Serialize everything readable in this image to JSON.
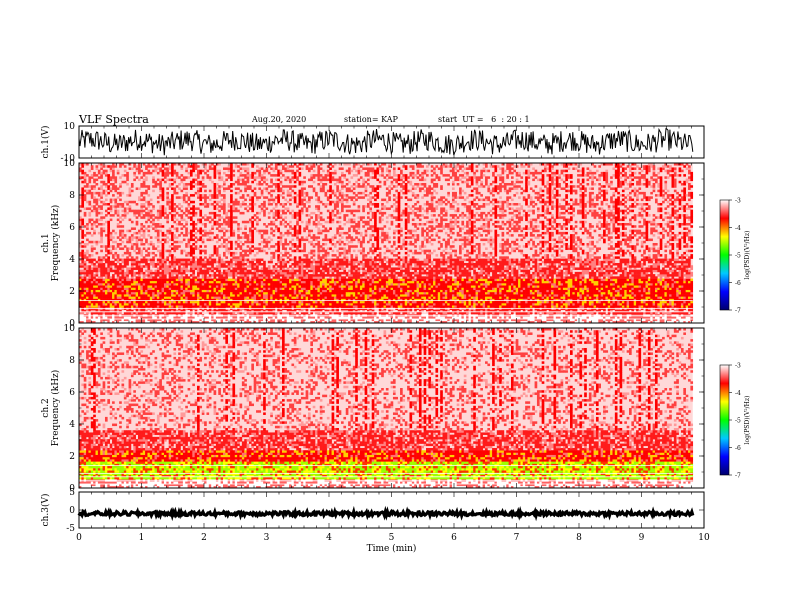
{
  "header": {
    "title": "VLF Spectra",
    "date": "Aug.20, 2020",
    "station": "station= KAP",
    "start": "start  UT =   6  : 20 : 1"
  },
  "chart_data": [
    {
      "type": "line",
      "panel": "ch1-waveform",
      "ylabel": "ch.1(V)",
      "xlim": [
        0,
        10
      ],
      "ylim": [
        -10,
        10
      ],
      "yticks": [
        "10",
        "-10"
      ],
      "trace_color": "#000000",
      "note": "dense noisy waveform spanning roughly -7 to 9 V, shown from t=0 to about 9.8 min"
    },
    {
      "type": "heatmap",
      "panel": "ch1-spectrogram",
      "ylabel": "ch.1\nFrequency  (kHz)",
      "xlim": [
        0,
        10
      ],
      "ylim": [
        0,
        10
      ],
      "yticks": [
        "0",
        "2",
        "4",
        "6",
        "8",
        "10"
      ],
      "colorbar": {
        "label": "log(PSD)(V²/Hz)",
        "range": [
          -7,
          -3
        ],
        "ticks": [
          "-3",
          "-4",
          "-5",
          "-6",
          "-7"
        ],
        "colors": [
          "#00006e",
          "#0000ff",
          "#00c8ff",
          "#00ff00",
          "#ffff00",
          "#ff0000",
          "#ffffff"
        ]
      },
      "low_band_khz": [
        1.0,
        2.8
      ]
    },
    {
      "type": "heatmap",
      "panel": "ch2-spectrogram",
      "ylabel": "ch.2\nFrequency  (kHz)",
      "xlim": [
        0,
        10
      ],
      "ylim": [
        0,
        10
      ],
      "yticks": [
        "0",
        "2",
        "4",
        "6",
        "8",
        "10"
      ],
      "colorbar": {
        "label": "log(PSD)(V²/Hz)",
        "range": [
          -7,
          -3
        ],
        "ticks": [
          "-3",
          "-4",
          "-5",
          "-6",
          "-7"
        ],
        "colors": [
          "#00006e",
          "#0000ff",
          "#00c8ff",
          "#00ff00",
          "#ffff00",
          "#ff0000",
          "#ffffff"
        ]
      },
      "low_band_khz": [
        0.6,
        2.4
      ]
    },
    {
      "type": "line",
      "panel": "ch3-waveform",
      "ylabel": "ch.3(V)",
      "xlabel": "Time  (min)",
      "xlim": [
        0,
        10
      ],
      "ylim": [
        -5,
        5
      ],
      "yticks": [
        "5",
        "0",
        "-5"
      ],
      "xticks": [
        "0",
        "1",
        "2",
        "3",
        "4",
        "5",
        "6",
        "7",
        "8",
        "9",
        "10"
      ],
      "trace_color": "#000000",
      "note": "dense waveform centered near -1 V with about ±0.5 V spread"
    }
  ]
}
